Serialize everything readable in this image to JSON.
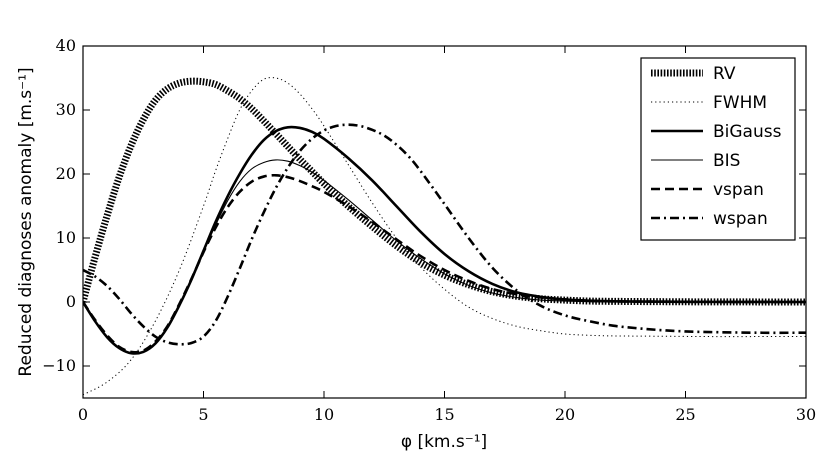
{
  "chart_data": {
    "type": "line",
    "title": "",
    "xlabel": "φ [km.s⁻¹]",
    "ylabel": "Reduced diagnoses anomaly [m.s⁻¹]",
    "xlim": [
      0,
      30
    ],
    "ylim": [
      -15,
      40
    ],
    "xticks": [
      "0",
      "5",
      "10",
      "15",
      "20",
      "25",
      "30"
    ],
    "yticks": [
      "−10",
      "0",
      "10",
      "20",
      "30",
      "40"
    ],
    "xtick_values": [
      0,
      5,
      10,
      15,
      20,
      25,
      30
    ],
    "ytick_values": [
      -10,
      0,
      10,
      20,
      30,
      40
    ],
    "grid": false,
    "legend_position": "top-right",
    "series": [
      {
        "name": "RV",
        "style": "hatched-thick",
        "x": [
          0,
          0.5,
          1,
          1.5,
          2,
          2.5,
          3,
          3.5,
          4,
          4.5,
          5,
          5.5,
          6,
          6.5,
          7,
          7.5,
          8,
          8.5,
          9,
          9.5,
          10,
          11,
          12,
          13,
          14,
          15,
          16,
          17,
          18,
          19,
          20,
          21,
          22,
          24,
          26,
          28,
          30
        ],
        "y": [
          0,
          7.0,
          13.5,
          19.5,
          24.5,
          28.5,
          31.5,
          33.3,
          34.2,
          34.5,
          34.4,
          34.0,
          33.0,
          31.8,
          30.2,
          28.3,
          26.3,
          24.3,
          22.3,
          20.4,
          18.5,
          15.0,
          11.8,
          8.8,
          6.2,
          4.2,
          2.7,
          1.6,
          0.9,
          0.5,
          0.3,
          0.15,
          0.1,
          0.05,
          0.02,
          0.01,
          0
        ]
      },
      {
        "name": "FWHM",
        "style": "dotted",
        "x": [
          0,
          1,
          2,
          3,
          4,
          5,
          5.5,
          6,
          6.5,
          7,
          7.5,
          8,
          8.5,
          9,
          9.5,
          10,
          11,
          12,
          13,
          14,
          15,
          16,
          17,
          18,
          19,
          20,
          21,
          22,
          24,
          26,
          28,
          30
        ],
        "y": [
          -14.5,
          -12.5,
          -9.0,
          -3.0,
          5.0,
          15.0,
          20.5,
          25.5,
          30.0,
          33.0,
          34.8,
          35.0,
          34.2,
          32.5,
          30.2,
          27.5,
          21.5,
          15.5,
          10.0,
          5.5,
          2.0,
          -0.8,
          -2.6,
          -3.8,
          -4.5,
          -5.0,
          -5.2,
          -5.3,
          -5.35,
          -5.4,
          -5.4,
          -5.4
        ]
      },
      {
        "name": "BiGauss",
        "style": "solid-thick",
        "x": [
          0,
          0.5,
          1,
          1.5,
          2,
          2.5,
          3,
          3.5,
          4,
          4.5,
          5,
          5.5,
          6,
          6.5,
          7,
          7.5,
          8,
          8.5,
          9,
          9.5,
          10,
          11,
          12,
          13,
          14,
          15,
          16,
          17,
          18,
          19,
          20,
          21,
          22,
          24,
          26,
          28,
          30
        ],
        "y": [
          0,
          -3.0,
          -5.5,
          -7.2,
          -8.0,
          -7.8,
          -6.5,
          -4.0,
          -0.5,
          3.5,
          8.0,
          12.5,
          16.5,
          20.0,
          23.0,
          25.3,
          26.7,
          27.3,
          27.2,
          26.6,
          25.5,
          22.5,
          19.0,
          15.0,
          11.0,
          7.5,
          4.8,
          2.8,
          1.5,
          0.8,
          0.4,
          0.2,
          0.1,
          0.05,
          0.02,
          0.01,
          0
        ]
      },
      {
        "name": "BIS",
        "style": "solid-thin",
        "x": [
          0,
          0.5,
          1,
          1.5,
          2,
          2.5,
          3,
          3.5,
          4,
          4.5,
          5,
          5.5,
          6,
          6.5,
          7,
          7.5,
          8,
          8.5,
          9,
          9.5,
          10,
          11,
          12,
          13,
          14,
          15,
          16,
          17,
          18,
          19,
          20,
          21,
          22,
          24,
          26,
          28,
          30
        ],
        "y": [
          0,
          -3.0,
          -5.5,
          -7.2,
          -8.0,
          -7.8,
          -6.5,
          -4.0,
          -0.5,
          3.5,
          7.8,
          12.0,
          15.8,
          18.8,
          20.8,
          21.8,
          22.2,
          22.0,
          21.3,
          20.3,
          19.0,
          16.0,
          12.8,
          9.6,
          6.8,
          4.4,
          2.6,
          1.4,
          0.7,
          0.3,
          0.15,
          0.05,
          0.02,
          0.01,
          0,
          0,
          0
        ]
      },
      {
        "name": "vspan",
        "style": "dashed-thick",
        "x": [
          0,
          0.5,
          1,
          1.5,
          2,
          2.5,
          3,
          3.5,
          4,
          4.5,
          5,
          5.5,
          6,
          6.5,
          7,
          7.5,
          8,
          8.5,
          9,
          9.5,
          10,
          11,
          12,
          13,
          14,
          15,
          16,
          17,
          18,
          19,
          20,
          21,
          22,
          24,
          26,
          28,
          30
        ],
        "y": [
          0,
          -2.8,
          -5.2,
          -7.0,
          -7.8,
          -7.6,
          -6.2,
          -3.8,
          -0.3,
          3.6,
          7.8,
          11.6,
          14.8,
          17.2,
          18.8,
          19.6,
          19.8,
          19.5,
          18.9,
          18.1,
          17.2,
          15.0,
          12.5,
          9.8,
          7.2,
          5.0,
          3.3,
          2.0,
          1.2,
          0.7,
          0.4,
          0.2,
          0.1,
          0.05,
          0.02,
          0.01,
          0
        ]
      },
      {
        "name": "wspan",
        "style": "dashdot-thick",
        "x": [
          0,
          0.5,
          1,
          1.5,
          2,
          2.5,
          3,
          3.5,
          4,
          4.5,
          5,
          5.5,
          6,
          6.5,
          7,
          7.5,
          8,
          8.5,
          9,
          9.5,
          10,
          10.5,
          11,
          11.5,
          12,
          12.5,
          13,
          13.5,
          14,
          15,
          16,
          17,
          18,
          19,
          20,
          21,
          22,
          23,
          24,
          25,
          26,
          28,
          30
        ],
        "y": [
          5.0,
          4.0,
          2.5,
          0.5,
          -1.8,
          -3.8,
          -5.4,
          -6.3,
          -6.6,
          -6.4,
          -5.4,
          -3.0,
          0.8,
          5.2,
          9.8,
          14.0,
          17.8,
          21.0,
          23.6,
          25.5,
          26.8,
          27.5,
          27.7,
          27.5,
          26.9,
          26.0,
          24.6,
          22.8,
          20.5,
          15.3,
          10.0,
          5.3,
          1.8,
          -0.6,
          -2.1,
          -3.0,
          -3.7,
          -4.1,
          -4.4,
          -4.6,
          -4.7,
          -4.8,
          -4.8
        ]
      }
    ]
  }
}
